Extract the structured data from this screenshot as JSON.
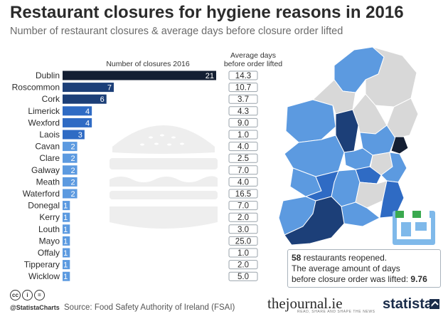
{
  "header": {
    "title": "Restaurant closures for hygiene reasons in 2016",
    "subtitle": "Number of restaurant closures & average days before closure order lifted"
  },
  "chart_data": {
    "type": "bar",
    "orientation": "horizontal",
    "bar_header": "Number of closures 2016",
    "days_header_line1": "Average days",
    "days_header_line2": "before order lifted",
    "categories": [
      "Dublin",
      "Roscommon",
      "Cork",
      "Limerick",
      "Wexford",
      "Laois",
      "Cavan",
      "Clare",
      "Galway",
      "Meath",
      "Waterford",
      "Donegal",
      "Kerry",
      "Louth",
      "Mayo",
      "Offaly",
      "Tipperary",
      "Wicklow"
    ],
    "closures": [
      21,
      7,
      6,
      4,
      4,
      3,
      2,
      2,
      2,
      2,
      2,
      1,
      1,
      1,
      1,
      1,
      1,
      1
    ],
    "avg_days_labels": [
      "14.3",
      "10.7",
      "3.7",
      "4.3",
      "9.0",
      "1.0",
      "4.0",
      "2.5",
      "7.0",
      "4.0",
      "16.5",
      "7.0",
      "2.0",
      "3.0",
      "25.0",
      "1.0",
      "2.0",
      "5.0"
    ],
    "xlim": [
      0,
      21
    ],
    "grid": false,
    "colors": {
      "tier_21": "#141f33",
      "tier_6_7": "#1c3f78",
      "tier_3_4": "#2f6bc4",
      "tier_1_2": "#5c9ae0",
      "map_light_grey": "#d8d8d8"
    }
  },
  "info": {
    "reopened_count": "58",
    "reopened_text": " restaurants reopened.",
    "line2": "The average amount of days",
    "line3_text": "before closure order was lifted: ",
    "line3_value": "9.76"
  },
  "footer": {
    "source": "Source: Food Safety Authority of Ireland (FSAI)",
    "handle": "@StatistaCharts",
    "license_icons": [
      "cc",
      "i",
      "="
    ],
    "journal_brand": "thejournal.ie",
    "journal_tagline": "READ, SHARE AND SHAPE THE NEWS",
    "statista_brand": "statista"
  },
  "icons": [
    "burger-icon",
    "ireland-map",
    "shop-icon",
    "closed-sign-icon",
    "statista-logo"
  ]
}
